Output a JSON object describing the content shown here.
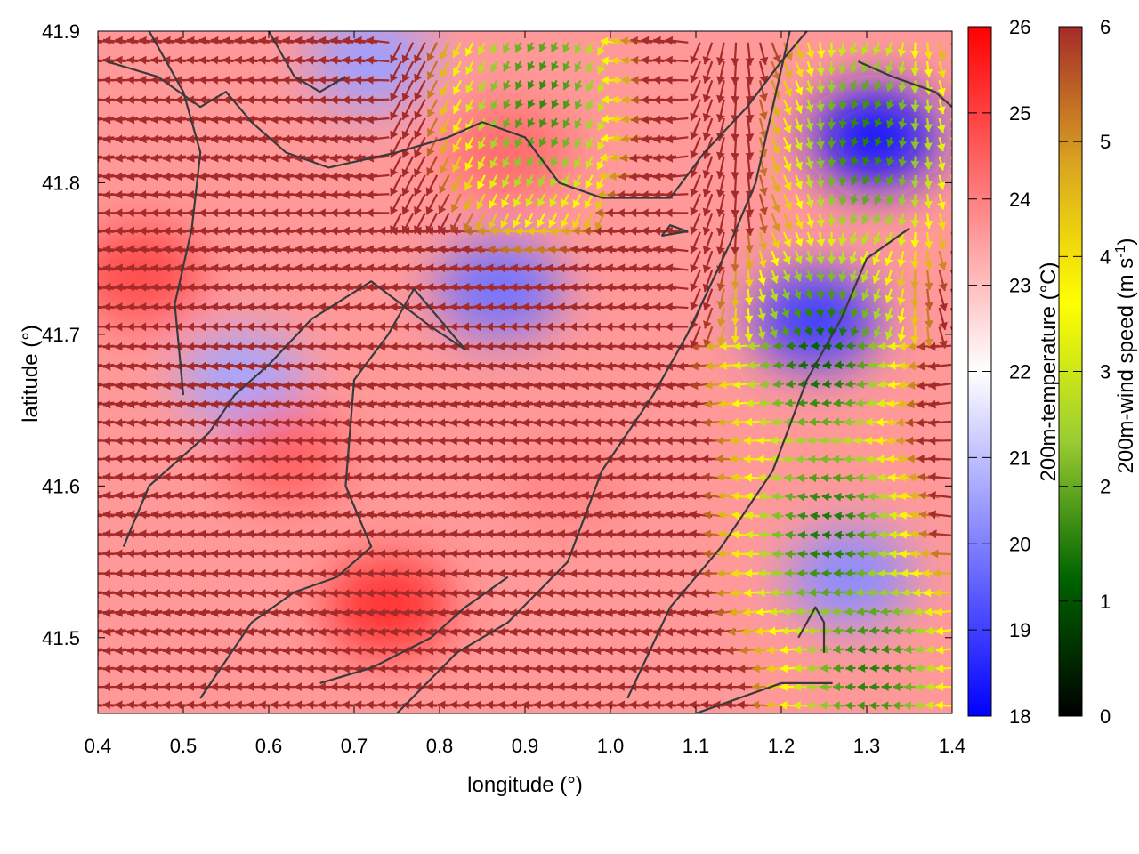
{
  "chart_data": {
    "type": "heatmap",
    "xlabel": "longitude (°)",
    "ylabel": "latitude (°)",
    "xlim": [
      0.4,
      1.4
    ],
    "ylim": [
      41.45,
      41.9
    ],
    "x_ticks": [
      "0.4",
      "0.5",
      "0.6",
      "0.7",
      "0.8",
      "0.9",
      "1.0",
      "1.1",
      "1.2",
      "1.3",
      "1.4"
    ],
    "y_ticks": [
      "41.5",
      "41.6",
      "41.7",
      "41.8",
      "41.9"
    ],
    "temperature_colorbar": {
      "label": "200m-temperature (°C)",
      "range": [
        18,
        26
      ],
      "ticks": [
        "18",
        "19",
        "20",
        "21",
        "22",
        "23",
        "24",
        "25",
        "26"
      ],
      "colors": [
        "#0000ff",
        "#ffffff",
        "#ff0000"
      ]
    },
    "wind_colorbar": {
      "label_main": "200m-wind speed (m s",
      "label_sup": "-1",
      "label_end": ")",
      "range": [
        0,
        6
      ],
      "ticks": [
        "0",
        "1",
        "2",
        "3",
        "4",
        "5",
        "6"
      ],
      "colors": [
        "#000000",
        "#006400",
        "#9acd32",
        "#ffff00",
        "#daa520",
        "#a52a2a"
      ]
    },
    "temperature_anomalies": [
      {
        "lon": 1.31,
        "lat": 41.83,
        "temp": 18.3
      },
      {
        "lon": 1.24,
        "lat": 41.71,
        "temp": 19.0
      },
      {
        "lon": 0.87,
        "lat": 41.73,
        "temp": 19.8
      },
      {
        "lon": 0.57,
        "lat": 41.67,
        "temp": 20.6
      },
      {
        "lon": 1.28,
        "lat": 41.54,
        "temp": 20.2
      },
      {
        "lon": 0.72,
        "lat": 41.88,
        "temp": 20.5
      },
      {
        "lon": 0.62,
        "lat": 41.62,
        "temp": 24.5
      },
      {
        "lon": 0.74,
        "lat": 41.52,
        "temp": 25.2
      },
      {
        "lon": 0.88,
        "lat": 41.82,
        "temp": 24.3
      },
      {
        "lon": 0.45,
        "lat": 41.74,
        "temp": 24.8
      },
      {
        "lon": 0.95,
        "lat": 41.6,
        "temp": 23.9
      }
    ],
    "wind_calm_zones": [
      {
        "lon": 1.25,
        "lat": 41.69,
        "speed": 1.2
      },
      {
        "lon": 1.26,
        "lat": 41.57,
        "speed": 1.4
      },
      {
        "lon": 0.92,
        "lat": 41.86,
        "speed": 1.6
      },
      {
        "lon": 1.3,
        "lat": 41.83,
        "speed": 1.5
      },
      {
        "lon": 1.31,
        "lat": 41.48,
        "speed": 1.5
      }
    ],
    "wind_direction": "mostly easterly, turning southward in the north-east",
    "coastlines": [
      [
        [
          0.43,
          41.56
        ],
        [
          0.46,
          41.6
        ],
        [
          0.53,
          41.635
        ],
        [
          0.56,
          41.66
        ],
        [
          0.6,
          41.68
        ],
        [
          0.65,
          41.71
        ],
        [
          0.72,
          41.735
        ],
        [
          0.79,
          41.705
        ],
        [
          0.83,
          41.69
        ],
        [
          0.77,
          41.73
        ],
        [
          0.74,
          41.7
        ],
        [
          0.7,
          41.67
        ],
        [
          0.69,
          41.6
        ],
        [
          0.72,
          41.56
        ],
        [
          0.68,
          41.54
        ],
        [
          0.63,
          41.53
        ],
        [
          0.58,
          41.51
        ],
        [
          0.52,
          41.46
        ]
      ],
      [
        [
          0.75,
          41.45
        ],
        [
          0.82,
          41.49
        ],
        [
          0.88,
          41.51
        ],
        [
          0.95,
          41.55
        ],
        [
          0.99,
          41.61
        ],
        [
          1.05,
          41.66
        ],
        [
          1.09,
          41.7
        ],
        [
          1.14,
          41.76
        ],
        [
          1.17,
          41.8
        ],
        [
          1.19,
          41.85
        ],
        [
          1.21,
          41.9
        ]
      ],
      [
        [
          1.02,
          41.46
        ],
        [
          1.07,
          41.52
        ],
        [
          1.13,
          41.56
        ],
        [
          1.19,
          41.61
        ],
        [
          1.23,
          41.67
        ],
        [
          1.27,
          41.71
        ],
        [
          1.3,
          41.75
        ],
        [
          1.35,
          41.77
        ]
      ],
      [
        [
          0.41,
          41.88
        ],
        [
          0.47,
          41.87
        ],
        [
          0.52,
          41.85
        ],
        [
          0.55,
          41.86
        ],
        [
          0.58,
          41.84
        ],
        [
          0.62,
          41.82
        ],
        [
          0.67,
          41.81
        ],
        [
          0.75,
          41.82
        ],
        [
          0.81,
          41.83
        ],
        [
          0.85,
          41.84
        ],
        [
          0.9,
          41.83
        ],
        [
          0.94,
          41.8
        ],
        [
          0.99,
          41.79
        ],
        [
          1.04,
          41.79
        ],
        [
          1.07,
          41.79
        ],
        [
          1.11,
          41.82
        ],
        [
          1.16,
          41.85
        ],
        [
          1.2,
          41.88
        ],
        [
          1.23,
          41.9
        ]
      ],
      [
        [
          0.46,
          41.9
        ],
        [
          0.5,
          41.86
        ],
        [
          0.52,
          41.82
        ],
        [
          0.51,
          41.77
        ],
        [
          0.49,
          41.72
        ],
        [
          0.5,
          41.66
        ]
      ],
      [
        [
          1.1,
          41.45
        ],
        [
          1.15,
          41.46
        ],
        [
          1.2,
          41.47
        ],
        [
          1.26,
          41.47
        ]
      ],
      [
        [
          0.66,
          41.47
        ],
        [
          0.72,
          41.48
        ],
        [
          0.79,
          41.5
        ],
        [
          0.83,
          41.52
        ],
        [
          0.88,
          41.54
        ]
      ],
      [
        [
          1.29,
          41.88
        ],
        [
          1.33,
          41.87
        ],
        [
          1.38,
          41.86
        ],
        [
          1.4,
          41.85
        ]
      ],
      [
        [
          0.6,
          41.9
        ],
        [
          0.63,
          41.87
        ],
        [
          0.66,
          41.86
        ],
        [
          0.69,
          41.87
        ]
      ],
      [
        [
          1.22,
          41.5
        ],
        [
          1.24,
          41.52
        ],
        [
          1.25,
          41.51
        ],
        [
          1.25,
          41.49
        ]
      ],
      [
        [
          1.06,
          41.765
        ],
        [
          1.09,
          41.768
        ],
        [
          1.07,
          41.772
        ],
        [
          1.06,
          41.765
        ]
      ]
    ]
  }
}
